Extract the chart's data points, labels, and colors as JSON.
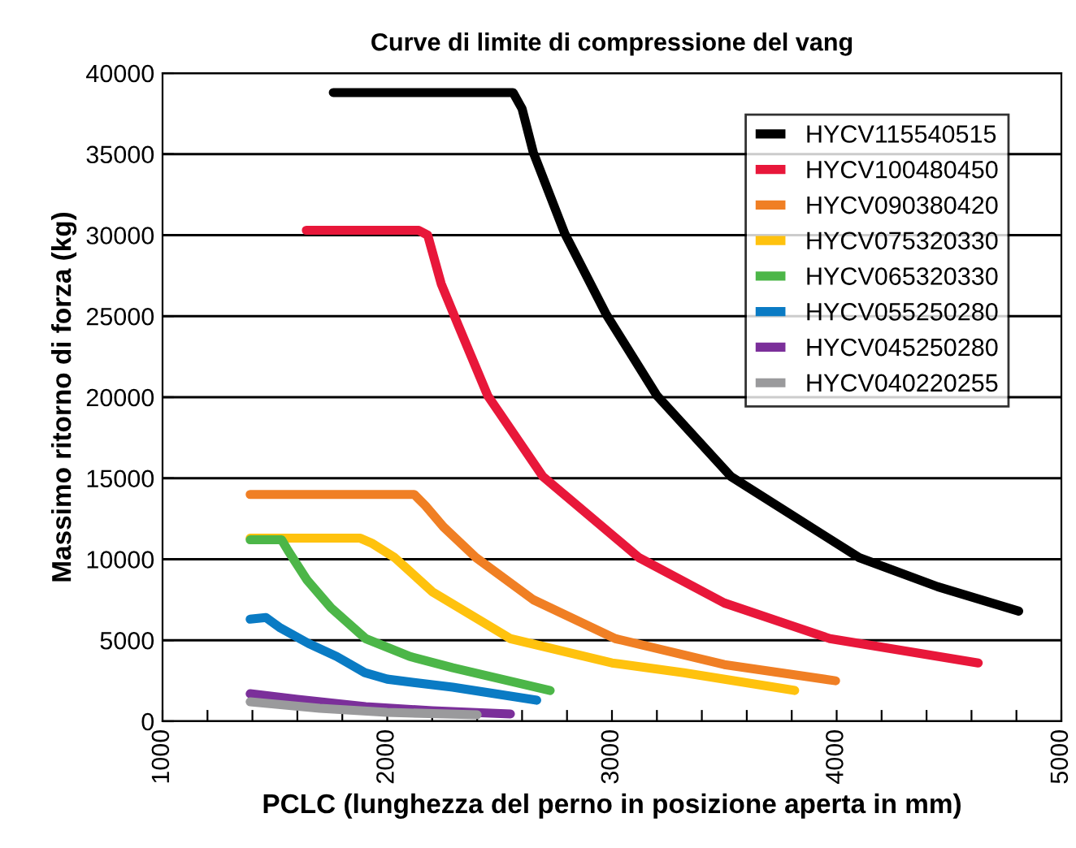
{
  "chart_data": {
    "type": "line",
    "title": "Curve di limite di compressione del vang",
    "xlabel": "PCLC (lunghezza del perno in posizione aperta in mm)",
    "ylabel": "Massimo ritorno di forza (kg)",
    "xlim": [
      1000,
      5000
    ],
    "xticks": [
      1000,
      {
        "value": 1200,
        "label": null
      },
      {
        "value": 1400,
        "label": null
      },
      {
        "value": 1600,
        "label": null
      },
      {
        "value": 1800,
        "label": null
      },
      2000,
      {
        "value": 2200,
        "label": null
      },
      {
        "value": 2400,
        "label": null
      },
      {
        "value": 2600,
        "label": null
      },
      {
        "value": 2800,
        "label": null
      },
      3000,
      {
        "value": 3200,
        "label": null
      },
      {
        "value": 3400,
        "label": null
      },
      {
        "value": 3600,
        "label": null
      },
      {
        "value": 3800,
        "label": null
      },
      4000,
      {
        "value": 4200,
        "label": null
      },
      {
        "value": 4400,
        "label": null
      },
      {
        "value": 4600,
        "label": null
      },
      {
        "value": 4800,
        "label": null
      },
      5000
    ],
    "ylim": [
      0,
      40000
    ],
    "yticks": [
      0,
      5000,
      10000,
      15000,
      20000,
      25000,
      30000,
      35000,
      40000
    ],
    "grid": "y",
    "legend": "top right",
    "marker": "none",
    "line_style": "solid",
    "series": [
      {
        "name": "HYCV115540515",
        "color": "#000000",
        "x": [
          1760,
          2500,
          2560,
          2600,
          2650,
          2790,
          2975,
          3200,
          3530,
          4100,
          4450,
          4810
        ],
        "values": [
          38800,
          38800,
          38800,
          37800,
          35100,
          30100,
          25100,
          20100,
          15100,
          10100,
          8300,
          6800
        ]
      },
      {
        "name": "HYCV100480450",
        "color": "#e8173a",
        "x": [
          1640,
          2140,
          2180,
          2240,
          2317,
          2447,
          2693,
          3120,
          3500,
          3970,
          4630
        ],
        "values": [
          30300,
          30300,
          30000,
          27000,
          24400,
          20100,
          15100,
          10100,
          7300,
          5100,
          3600
        ]
      },
      {
        "name": "HYCV090380420",
        "color": "#f07f24",
        "x": [
          1390,
          2120,
          2170,
          2250,
          2395,
          2650,
          3015,
          3500,
          3995
        ],
        "values": [
          14000,
          14000,
          13300,
          12000,
          10100,
          7500,
          5100,
          3500,
          2500
        ]
      },
      {
        "name": "HYCV075320330",
        "color": "#ffc20e",
        "x": [
          1390,
          1880,
          1930,
          2033,
          2200,
          2548,
          3000,
          3320,
          3813
        ],
        "values": [
          11300,
          11300,
          11000,
          10100,
          8000,
          5100,
          3600,
          3000,
          1900
        ]
      },
      {
        "name": "HYCV065320330",
        "color": "#4cb648",
        "x": [
          1390,
          1530,
          1560,
          1644,
          1750,
          1904,
          2100,
          2292,
          2725
        ],
        "values": [
          11200,
          11200,
          10500,
          8700,
          7000,
          5100,
          4000,
          3300,
          1900
        ]
      },
      {
        "name": "HYCV055250280",
        "color": "#0a7bc4",
        "x": [
          1390,
          1460,
          1520,
          1650,
          1775,
          1900,
          2000,
          2291,
          2665
        ],
        "values": [
          6300,
          6400,
          5800,
          4800,
          4000,
          3000,
          2600,
          2100,
          1300
        ]
      },
      {
        "name": "HYCV045250280",
        "color": "#7b2f9a",
        "x": [
          1390,
          1600,
          1904,
          2200,
          2548
        ],
        "values": [
          1700,
          1350,
          900,
          650,
          450
        ]
      },
      {
        "name": "HYCV040220255",
        "color": "#9a9a9c",
        "x": [
          1390,
          1700,
          2000,
          2400
        ],
        "values": [
          1200,
          800,
          550,
          400
        ]
      }
    ]
  }
}
